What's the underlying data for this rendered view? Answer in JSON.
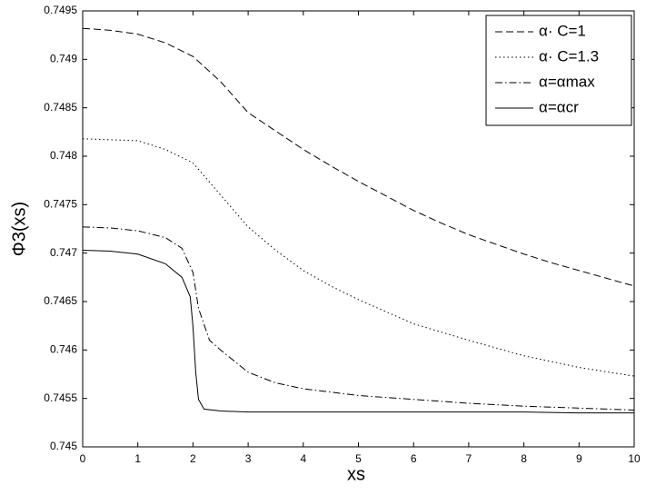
{
  "chart_data": {
    "type": "line",
    "xlabel": "xs",
    "ylabel": "Φ3(xs)",
    "xlim": [
      0,
      10
    ],
    "ylim": [
      0.745,
      0.7495
    ],
    "xticks": [
      0,
      1,
      2,
      3,
      4,
      5,
      6,
      7,
      8,
      9,
      10
    ],
    "yticks": [
      0.745,
      0.7455,
      0.746,
      0.7465,
      0.747,
      0.7475,
      0.748,
      0.7485,
      0.749,
      0.7495
    ],
    "legend": "upper right",
    "series": [
      {
        "name": "α· C=1",
        "color": "#000000",
        "linestyle": "dashed",
        "x": [
          0,
          0.5,
          1,
          1.5,
          2,
          2.5,
          3,
          3.5,
          4,
          4.5,
          5,
          5.5,
          6,
          6.5,
          7,
          7.5,
          8,
          8.5,
          9,
          9.5,
          10
        ],
        "values": [
          0.74932,
          0.7493,
          0.74926,
          0.74917,
          0.74903,
          0.74877,
          0.74845,
          0.74826,
          0.74807,
          0.7479,
          0.74774,
          0.74759,
          0.74744,
          0.74731,
          0.74719,
          0.74709,
          0.74699,
          0.7469,
          0.74682,
          0.74674,
          0.74666
        ]
      },
      {
        "name": "α· C=1.3",
        "color": "#000000",
        "linestyle": "dotted",
        "x": [
          0,
          0.5,
          1,
          1.5,
          2,
          2.5,
          3,
          3.5,
          4,
          4.5,
          5,
          6,
          7,
          8,
          9,
          10
        ],
        "values": [
          0.74818,
          0.74817,
          0.74816,
          0.74807,
          0.74793,
          0.7476,
          0.74727,
          0.74703,
          0.74682,
          0.74666,
          0.74652,
          0.74627,
          0.7461,
          0.74594,
          0.74582,
          0.74573
        ]
      },
      {
        "name": "α=αmax",
        "color": "#000000",
        "linestyle": "dashdot",
        "x": [
          0,
          0.5,
          1,
          1.5,
          1.8,
          2,
          2.1,
          2.3,
          2.5,
          3,
          3.5,
          4,
          5,
          6,
          7,
          8,
          9,
          10
        ],
        "values": [
          0.74727,
          0.74726,
          0.74723,
          0.74716,
          0.74705,
          0.7468,
          0.74643,
          0.7461,
          0.746,
          0.74577,
          0.74566,
          0.7456,
          0.74553,
          0.74549,
          0.74545,
          0.74542,
          0.7454,
          0.74538
        ]
      },
      {
        "name": "α=αcr",
        "color": "#000000",
        "linestyle": "solid",
        "x": [
          0,
          0.5,
          1,
          1.5,
          1.8,
          1.95,
          2,
          2.05,
          2.1,
          2.2,
          2.5,
          3,
          4,
          5,
          6,
          7,
          8,
          9,
          10
        ],
        "values": [
          0.74703,
          0.74702,
          0.74699,
          0.74689,
          0.74675,
          0.74655,
          0.74624,
          0.74577,
          0.74549,
          0.74539,
          0.74537,
          0.74536,
          0.74536,
          0.74536,
          0.74536,
          0.74536,
          0.74536,
          0.74535,
          0.74535
        ]
      }
    ]
  }
}
